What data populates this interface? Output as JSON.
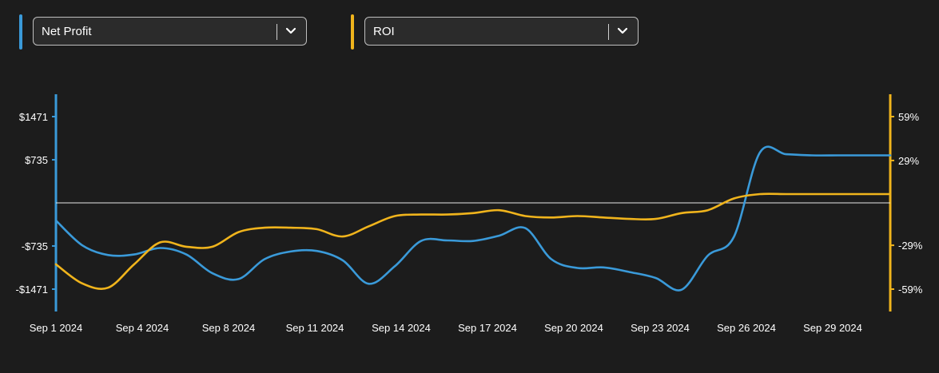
{
  "selectors": [
    {
      "label": "Net Profit",
      "color": "#3a9ad9"
    },
    {
      "label": "ROI",
      "color": "#f0b41c"
    }
  ],
  "chart_data": {
    "type": "line",
    "x_ticks": [
      "Sep 1 2024",
      "Sep 4 2024",
      "Sep 8 2024",
      "Sep 11 2024",
      "Sep 14 2024",
      "Sep 17 2024",
      "Sep 20 2024",
      "Sep 23 2024",
      "Sep 26 2024",
      "Sep 29 2024"
    ],
    "y_left_ticks": [
      "$1471",
      "$735",
      "-$735",
      "-$1471"
    ],
    "y_right_ticks": [
      "59%",
      "29%",
      "-29%",
      "-59%"
    ],
    "y_left_range": [
      -1471,
      1471
    ],
    "y_right_range": [
      -59,
      59
    ],
    "grid": false,
    "zero_line": true,
    "series": [
      {
        "name": "Net Profit",
        "axis": "left",
        "color": "#3a9ad9",
        "x": [
          0,
          1,
          2,
          3,
          4,
          5,
          6,
          7,
          8,
          9,
          10,
          11,
          12,
          13,
          14,
          15,
          16,
          17,
          18,
          19,
          20,
          21,
          22,
          23,
          24,
          25,
          26,
          27,
          28,
          29,
          30,
          31,
          32
        ],
        "values": [
          -300,
          -720,
          -890,
          -880,
          -770,
          -880,
          -1200,
          -1300,
          -960,
          -830,
          -820,
          -980,
          -1380,
          -1080,
          -650,
          -640,
          -650,
          -560,
          -430,
          -960,
          -1110,
          -1100,
          -1180,
          -1280,
          -1480,
          -900,
          -580,
          860,
          830,
          810,
          810,
          810,
          810
        ]
      },
      {
        "name": "ROI",
        "axis": "right",
        "color": "#f0b41c",
        "x": [
          0,
          1,
          2,
          3,
          4,
          5,
          6,
          7,
          8,
          9,
          10,
          11,
          12,
          13,
          14,
          15,
          16,
          17,
          18,
          19,
          20,
          21,
          22,
          23,
          24,
          25,
          26,
          27,
          28,
          29,
          30,
          31,
          32
        ],
        "values": [
          -42,
          -55,
          -58,
          -42,
          -27,
          -30,
          -30,
          -20,
          -17,
          -17,
          -18,
          -23,
          -16,
          -9,
          -8,
          -8,
          -7,
          -5,
          -9,
          -10,
          -9,
          -10,
          -11,
          -11,
          -7,
          -5,
          3,
          6,
          6,
          6,
          6,
          6,
          6
        ]
      }
    ]
  }
}
